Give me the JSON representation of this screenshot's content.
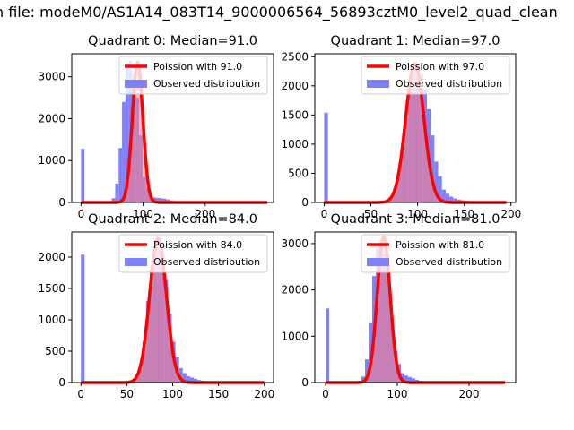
{
  "figure": {
    "suptitle": "n file: modeM0/AS1A14_083T14_9000006564_56893cztM0_level2_quad_clean"
  },
  "colors": {
    "hist": "#8080f8",
    "poisson": "#ff0000",
    "poisson_fill": "#ff8080"
  },
  "chart_data": [
    {
      "type": "bar",
      "title": "Quadrant 0: Median=91.0",
      "median": 91.0,
      "legend": [
        "Poission with 91.0",
        "Observed distribution"
      ],
      "legend_placement": "upper right",
      "xlim": [
        -15,
        310
      ],
      "ylim": [
        0,
        3550
      ],
      "xticks": [
        0,
        100,
        200
      ],
      "yticks": [
        0,
        1000,
        2000,
        3000
      ],
      "bin_width": 5.5,
      "hist_x": [
        0,
        44,
        49.5,
        55,
        60.5,
        66,
        71.5,
        77,
        82.5,
        88,
        93.5,
        99,
        104.5,
        110,
        115.5,
        121,
        126.5,
        132,
        137.5,
        143,
        148.5
      ],
      "hist_y": [
        1280,
        30,
        100,
        450,
        1300,
        2400,
        3300,
        3380,
        3000,
        2500,
        1600,
        600,
        350,
        150,
        120,
        110,
        100,
        90,
        70,
        50,
        30
      ],
      "poisson_peak": 3350,
      "poisson_sigma": 8.5,
      "poisson_x_range": [
        0,
        300
      ]
    },
    {
      "type": "bar",
      "title": "Quadrant 1: Median=97.0",
      "median": 97.0,
      "legend": [
        "Poission with 97.0",
        "Observed distribution"
      ],
      "legend_placement": "upper right",
      "xlim": [
        -10,
        205
      ],
      "ylim": [
        0,
        2550
      ],
      "xticks": [
        0,
        50,
        100,
        150,
        200
      ],
      "yticks": [
        0,
        500,
        1000,
        1500,
        2000,
        2500
      ],
      "bin_width": 4,
      "hist_x": [
        0,
        66,
        70,
        74,
        78,
        82,
        86,
        90,
        94,
        98,
        102,
        106,
        110,
        114,
        118,
        122,
        126,
        130,
        134,
        138,
        142,
        146,
        150
      ],
      "hist_y": [
        1540,
        40,
        100,
        250,
        500,
        900,
        1450,
        2000,
        2280,
        2350,
        2200,
        1950,
        1600,
        1150,
        700,
        450,
        220,
        150,
        100,
        70,
        50,
        40,
        30
      ],
      "poisson_peak": 2380,
      "poisson_sigma": 9.8,
      "poisson_x_range": [
        0,
        195
      ]
    },
    {
      "type": "bar",
      "title": "Quadrant 2: Median=84.0",
      "median": 84.0,
      "legend": [
        "Poission with 84.0",
        "Observed distribution"
      ],
      "legend_placement": "upper right",
      "xlim": [
        -10,
        210
      ],
      "ylim": [
        0,
        2400
      ],
      "xticks": [
        0,
        50,
        100,
        150,
        200
      ],
      "yticks": [
        0,
        500,
        1000,
        1500,
        2000
      ],
      "bin_width": 4,
      "hist_x": [
        0,
        55,
        59,
        63,
        67,
        71,
        75,
        79,
        83,
        87,
        91,
        95,
        99,
        103,
        107,
        111,
        115,
        119,
        123,
        127,
        131,
        135
      ],
      "hist_y": [
        2040,
        30,
        80,
        200,
        650,
        1300,
        1850,
        2180,
        2220,
        2050,
        1650,
        1100,
        650,
        400,
        230,
        150,
        100,
        80,
        60,
        40,
        30,
        20
      ],
      "poisson_peak": 2300,
      "poisson_sigma": 9.2,
      "poisson_x_range": [
        0,
        200
      ]
    },
    {
      "type": "bar",
      "title": "Quadrant 3: Median=81.0",
      "median": 81.0,
      "legend": [
        "Poission with 81.0",
        "Observed distribution"
      ],
      "legend_placement": "upper right",
      "xlim": [
        -15,
        265
      ],
      "ylim": [
        0,
        3250
      ],
      "xticks": [
        0,
        100,
        200
      ],
      "yticks": [
        0,
        1000,
        2000,
        3000
      ],
      "bin_width": 5,
      "hist_x": [
        0,
        45,
        50,
        55,
        60,
        65,
        70,
        75,
        80,
        85,
        90,
        95,
        100,
        105,
        110,
        115,
        120,
        125,
        130,
        135
      ],
      "hist_y": [
        1600,
        40,
        130,
        500,
        1300,
        2300,
        2900,
        3050,
        2800,
        2200,
        1400,
        700,
        400,
        200,
        150,
        120,
        90,
        60,
        40,
        20
      ],
      "poisson_peak": 3150,
      "poisson_sigma": 9.0,
      "poisson_x_range": [
        0,
        250
      ]
    }
  ]
}
